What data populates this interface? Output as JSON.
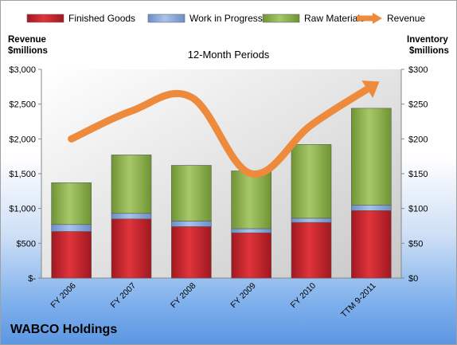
{
  "company": "WABCO Holdings",
  "chart_data": {
    "type": "bar",
    "subtitle": "12-Month Periods",
    "categories": [
      "FY 2006",
      "FY 2007",
      "FY 2008",
      "FY 2009",
      "FY 2010",
      "TTM 9-2011"
    ],
    "y_left": {
      "label_line1": "Revenue",
      "label_line2": "$millions",
      "ticks": [
        "$-",
        "$500",
        "$1,000",
        "$1,500",
        "$2,000",
        "$2,500",
        "$3,000"
      ],
      "range": [
        0,
        3000
      ]
    },
    "y_right": {
      "label_line1": "Inventory",
      "label_line2": "$millions",
      "ticks": [
        "$0",
        "$50",
        "$100",
        "$150",
        "$200",
        "$250",
        "$300"
      ],
      "range": [
        0,
        300
      ]
    },
    "legend_position": "top",
    "grid": false,
    "stacked_series": [
      {
        "name": "Finished Goods",
        "color": "#c0242b",
        "values": [
          67,
          85,
          74,
          65,
          80,
          97
        ]
      },
      {
        "name": "Work in Progress",
        "color": "#7da2d9",
        "values": [
          10,
          8,
          8,
          6,
          6,
          8
        ]
      },
      {
        "name": "Raw Materials",
        "color": "#8db24a",
        "values": [
          60,
          84,
          80,
          83,
          106,
          139
        ]
      }
    ],
    "line_series": {
      "name": "Revenue",
      "color": "#ed8a3b",
      "values": [
        2000,
        2400,
        2600,
        1500,
        2200,
        2750
      ]
    }
  }
}
